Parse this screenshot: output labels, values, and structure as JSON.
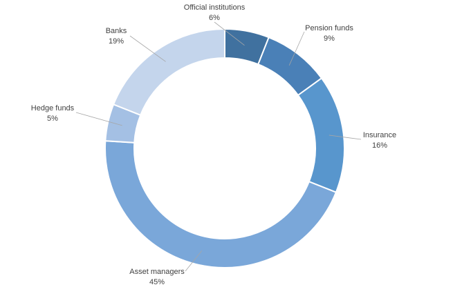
{
  "chart_data": {
    "type": "pie",
    "variant": "doughnut",
    "title": "",
    "legend": "none",
    "categories": [
      "Official institutions",
      "Pension funds",
      "Insurance",
      "Asset managers",
      "Hedge funds",
      "Banks"
    ],
    "values": [
      6,
      9,
      16,
      45,
      5,
      19
    ],
    "value_labels": [
      "6%",
      "9%",
      "16%",
      "45%",
      "5%",
      "19%"
    ],
    "colors": [
      "#40719f",
      "#4a80b7",
      "#5896cd",
      "#7aa7d9",
      "#a4c0e4",
      "#c4d5ec"
    ]
  }
}
